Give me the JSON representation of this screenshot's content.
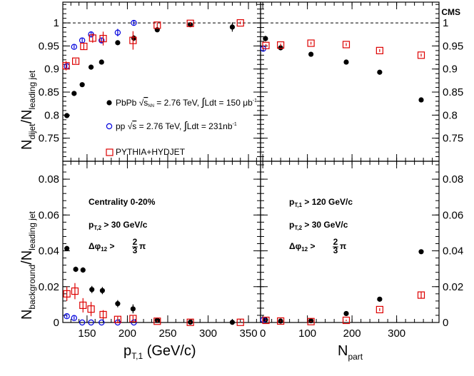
{
  "chart_data": {
    "type": "scatter",
    "experiment_label": "CMS",
    "xlabel_left": {
      "main": "p",
      "sub": "T,1",
      "unit": " (GeV/c)"
    },
    "xlabel_right": {
      "main": "N",
      "sub": "part"
    },
    "ylabel_top": {
      "a": "N",
      "a_sub": "dijet",
      "b": "/N",
      "b_sub": "leading jet"
    },
    "ylabel_bottom": {
      "a": "N",
      "a_sub": "background",
      "b": "/N",
      "b_sub": "leading jet"
    },
    "reference_line": 1,
    "panels": [
      {
        "id": "top-left",
        "xlim": [
          120,
          365
        ],
        "ylim": [
          0.7,
          1.045
        ],
        "x_ticks": [
          150,
          200,
          250,
          300,
          350
        ],
        "y_ticks": [
          "0.75",
          "0.8",
          "0.85",
          "0.9",
          "0.95",
          "1"
        ],
        "series": [
          {
            "name": "PbPb",
            "marker": "filled-circle",
            "color": "#000000",
            "points": [
              [
                125,
                0.799
              ],
              [
                134,
                0.847
              ],
              [
                144,
                0.866
              ],
              [
                155,
                0.904
              ],
              [
                168,
                0.915
              ],
              [
                188,
                0.957
              ],
              [
                208,
                0.967
              ],
              [
                237,
                0.985
              ],
              [
                278,
                0.996
              ],
              [
                330,
                0.991
              ]
            ],
            "errors": [
              0.004,
              0.004,
              0.003,
              0.003,
              0.004,
              0.004,
              0.006,
              0.004,
              0.003,
              0.01
            ]
          },
          {
            "name": "pp",
            "marker": "open-circle",
            "color": "#0000dd",
            "points": [
              [
                125,
                0.906
              ],
              [
                134,
                0.948
              ],
              [
                144,
                0.962
              ],
              [
                155,
                0.975
              ],
              [
                168,
                0.962
              ],
              [
                188,
                0.979
              ],
              [
                208,
                1.0
              ]
            ],
            "errors": [
              0.004,
              0.004,
              0.005,
              0.005,
              0.006,
              0.008,
              0.006
            ]
          },
          {
            "name": "PYTHIA+HYDJET",
            "marker": "open-square",
            "color": "#dd0000",
            "points": [
              [
                124,
                0.907
              ],
              [
                136,
                0.917
              ],
              [
                146,
                0.949
              ],
              [
                157,
                0.967
              ],
              [
                170,
                0.966
              ],
              [
                207,
                0.962
              ],
              [
                237,
                0.995
              ],
              [
                278,
                0.999
              ],
              [
                340,
                1.0
              ]
            ],
            "errors": [
              0.01,
              0.005,
              0.006,
              0.01,
              0.015,
              0.02,
              0.005,
              0.003,
              0.003
            ]
          }
        ]
      },
      {
        "id": "top-right",
        "xlim": [
          -5,
          395
        ],
        "ylim": [
          0.7,
          1.045
        ],
        "x_ticks": [
          0,
          100,
          200,
          300
        ],
        "y_ticks": [
          "0.75",
          "0.8",
          "0.85",
          "0.9",
          "0.95",
          "1"
        ],
        "series": [
          {
            "name": "PbPb",
            "marker": "filled-circle",
            "color": "#000000",
            "points": [
              [
                6,
                0.966
              ],
              [
                40,
                0.946
              ],
              [
                108,
                0.932
              ],
              [
                187,
                0.915
              ],
              [
                262,
                0.893
              ],
              [
                355,
                0.833
              ]
            ],
            "errors": [
              0.006,
              0.004,
              0.003,
              0.003,
              0.003,
              0.003
            ]
          },
          {
            "name": "pp",
            "marker": "open-circle",
            "color": "#0000dd",
            "points": [
              [
                1,
                0.944
              ]
            ],
            "errors": [
              0.003
            ]
          },
          {
            "name": "PYTHIA+HYDJET",
            "marker": "open-square",
            "color": "#dd0000",
            "points": [
              [
                7,
                0.951
              ],
              [
                40,
                0.952
              ],
              [
                108,
                0.956
              ],
              [
                187,
                0.953
              ],
              [
                262,
                0.94
              ],
              [
                355,
                0.93
              ]
            ],
            "errors": [
              0.003,
              0.003,
              0.003,
              0.003,
              0.003,
              0.003
            ]
          }
        ]
      },
      {
        "id": "bottom-left",
        "xlim": [
          120,
          365
        ],
        "ylim": [
          0,
          0.09
        ],
        "x_ticks": [
          150,
          200,
          250,
          300,
          350
        ],
        "y_ticks": [
          "0",
          "0.02",
          "0.04",
          "0.06",
          "0.08"
        ],
        "series": [
          {
            "name": "PbPb",
            "marker": "filled-circle",
            "color": "#000000",
            "points": [
              [
                125,
                0.0413
              ],
              [
                136,
                0.0297
              ],
              [
                145,
                0.0293
              ],
              [
                156,
                0.0184
              ],
              [
                169,
                0.0178
              ],
              [
                188,
                0.0105
              ],
              [
                207,
                0.0076
              ],
              [
                237,
                0.0013
              ],
              [
                278,
                0.0002
              ],
              [
                330,
                0.0001
              ]
            ],
            "errors": [
              0.0015,
              0.0015,
              0.0015,
              0.002,
              0.002,
              0.002,
              0.0025,
              0.0008,
              0.0005,
              0.0005
            ]
          },
          {
            "name": "pp",
            "marker": "open-circle",
            "color": "#0000dd",
            "points": [
              [
                125,
                0.0035
              ],
              [
                134,
                0.0025
              ],
              [
                144,
                0.0
              ],
              [
                155,
                0.0
              ],
              [
                168,
                0.0
              ],
              [
                188,
                0.0
              ],
              [
                208,
                0.0
              ]
            ],
            "errors": [
              0.001,
              0.001,
              0.0,
              0.0,
              0.0,
              0.0,
              0.0
            ]
          },
          {
            "name": "PYTHIA+HYDJET",
            "marker": "open-square",
            "color": "#dd0000",
            "points": [
              [
                125,
                0.016
              ],
              [
                135,
                0.0175
              ],
              [
                145,
                0.0096
              ],
              [
                155,
                0.0075
              ],
              [
                170,
                0.0044
              ],
              [
                188,
                0.0017
              ],
              [
                207,
                0.0022
              ],
              [
                237,
                0.0007
              ],
              [
                278,
                0.0001
              ],
              [
                340,
                0.0001
              ]
            ],
            "errors": [
              0.004,
              0.0045,
              0.004,
              0.004,
              0.0025,
              0.0015,
              0.0015,
              0.0005,
              0.0003,
              0.0003
            ]
          }
        ]
      },
      {
        "id": "bottom-right",
        "xlim": [
          -5,
          395
        ],
        "ylim": [
          0,
          0.09
        ],
        "x_ticks": [
          0,
          100,
          200,
          300
        ],
        "y_ticks": [
          "0",
          "0.02",
          "0.04",
          "0.06",
          "0.08"
        ],
        "series": [
          {
            "name": "PbPb",
            "marker": "filled-circle",
            "color": "#000000",
            "points": [
              [
                6,
                0.0015
              ],
              [
                40,
                0.0008
              ],
              [
                108,
                0.001
              ],
              [
                187,
                0.005
              ],
              [
                262,
                0.013
              ],
              [
                355,
                0.0395
              ]
            ],
            "errors": [
              0.0005,
              0.0003,
              0.0003,
              0.0003,
              0.0005,
              0.001
            ]
          },
          {
            "name": "pp",
            "marker": "open-circle",
            "color": "#0000dd",
            "points": [
              [
                1,
                0.0015
              ]
            ],
            "errors": [
              0.0003
            ]
          },
          {
            "name": "PYTHIA+HYDJET",
            "marker": "open-square",
            "color": "#dd0000",
            "points": [
              [
                7,
                0.0012
              ],
              [
                40,
                0.0008
              ],
              [
                108,
                0.0005
              ],
              [
                187,
                0.0012
              ],
              [
                262,
                0.0072
              ],
              [
                355,
                0.0153
              ]
            ],
            "errors": [
              0.0004,
              0.0003,
              0.0003,
              0.0004,
              0.0008,
              0.0018
            ]
          }
        ]
      }
    ],
    "legend": [
      {
        "marker": "filled-circle",
        "color": "#000000",
        "parts": [
          "PbPb  ",
          "√",
          "s",
          "NN",
          " = 2.76 TeV, ",
          "∫",
          "Ldt = 150 μb",
          "-1"
        ]
      },
      {
        "marker": "open-circle",
        "color": "#0000dd",
        "parts": [
          "pp  ",
          "√",
          "s",
          " = 2.76 TeV, ",
          "∫",
          "Ldt = 231nb",
          "-1"
        ]
      },
      {
        "marker": "open-square",
        "color": "#dd0000",
        "parts": [
          "PYTHIA+HYDJET"
        ]
      }
    ],
    "annotations": {
      "centrality": "Centrality 0-20%",
      "pt1_cut": {
        "p": "p",
        "sub": "T,1",
        "rest": " > 120 GeV/c"
      },
      "pt2_cut": {
        "p": "p",
        "sub": "T,2",
        "rest": " > 30 GeV/c"
      },
      "dphi_cut": {
        "sym": "Δφ",
        "sub": "12",
        "gt": " > ",
        "num": "2",
        "den": "3",
        "pi": "π"
      }
    }
  }
}
